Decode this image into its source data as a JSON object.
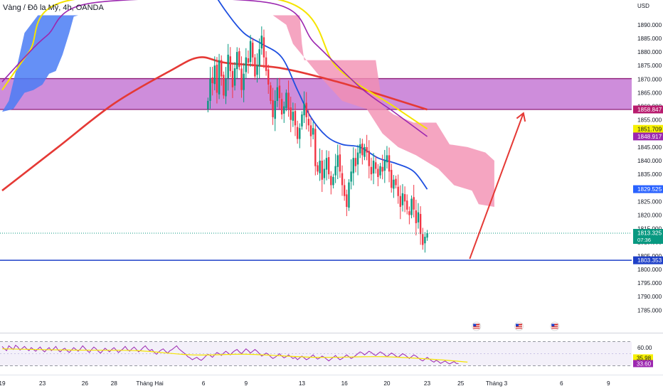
{
  "header": {
    "title": "Vàng / Đô la Mỹ, 4h, OANDA"
  },
  "currency": "USD",
  "price_axis": {
    "ticks": [
      "1890.000",
      "1885.000",
      "1880.000",
      "1875.000",
      "1870.000",
      "1865.000",
      "1860.000",
      "1855.000",
      "1850.000",
      "1845.000",
      "1840.000",
      "1835.000",
      "1830.000",
      "1825.000",
      "1820.000",
      "1815.000",
      "1810.000",
      "1805.000",
      "1800.000",
      "1795.000",
      "1790.000",
      "1785.000"
    ],
    "tick_values": [
      1890,
      1885,
      1880,
      1875,
      1870,
      1865,
      1860,
      1855,
      1850,
      1845,
      1840,
      1835,
      1830,
      1825,
      1820,
      1815,
      1810,
      1805,
      1800,
      1795,
      1790,
      1785
    ],
    "ymin": 1780.5,
    "ymax": 1893.5,
    "badges": [
      {
        "label": "1858.847",
        "value": 1858.847,
        "bg": "#b81b6e",
        "fg": "#ffffff",
        "kind": "line"
      },
      {
        "label": "1851.709",
        "value": 1851.709,
        "bg": "#f6f000",
        "fg": "#131722",
        "kind": "ma"
      },
      {
        "label": "1848.917",
        "value": 1848.917,
        "bg": "#9c27b0",
        "fg": "#ffffff",
        "kind": "ma"
      },
      {
        "label": "1829.525",
        "value": 1829.525,
        "bg": "#2962ff",
        "fg": "#ffffff",
        "kind": "ma"
      },
      {
        "label": "1813.325",
        "value": 1813.325,
        "bg": "#089981",
        "fg": "#ffffff",
        "kind": "price",
        "sub": "07:36"
      },
      {
        "label": "1803.353",
        "value": 1803.353,
        "bg": "#1e40c8",
        "fg": "#ffffff",
        "kind": "line"
      }
    ]
  },
  "time_axis": {
    "labels": [
      {
        "text": "19",
        "i": 0
      },
      {
        "text": "23",
        "i": 18
      },
      {
        "text": "26",
        "i": 37
      },
      {
        "text": "28",
        "i": 50
      },
      {
        "text": "Tháng Hai",
        "i": 66
      },
      {
        "text": "6",
        "i": 90
      },
      {
        "text": "9",
        "i": 109
      },
      {
        "text": "13",
        "i": 134
      },
      {
        "text": "16",
        "i": 153
      },
      {
        "text": "20",
        "i": 172
      },
      {
        "text": "23",
        "i": 190
      },
      {
        "text": "25",
        "i": 205
      },
      {
        "text": "Tháng 3",
        "i": 221
      },
      {
        "text": "6",
        "i": 250
      },
      {
        "text": "9",
        "i": 271
      }
    ]
  },
  "rsi": {
    "ticks": [
      "60.00"
    ],
    "badges": [
      {
        "label": "35.98",
        "bg": "#f6f000",
        "fg": "#131722",
        "value": 35.98
      },
      {
        "label": "33.60",
        "bg": "#9c27b0",
        "fg": "#ffffff",
        "value": 33.6
      }
    ],
    "upper": 70,
    "lower": 30,
    "values": [
      62,
      58,
      55,
      63,
      60,
      57,
      64,
      61,
      56,
      59,
      62,
      58,
      55,
      60,
      57,
      54,
      58,
      61,
      56,
      53,
      57,
      60,
      55,
      58,
      62,
      56,
      53,
      57,
      59,
      55,
      52,
      56,
      60,
      57,
      54,
      58,
      63,
      59,
      55,
      52,
      57,
      61,
      58,
      54,
      51,
      55,
      59,
      56,
      53,
      57,
      60,
      56,
      52,
      55,
      58,
      62,
      57,
      54,
      58,
      61,
      57,
      53,
      56,
      60,
      63,
      58,
      55,
      57,
      52,
      49,
      53,
      56,
      58,
      54,
      51,
      55,
      57,
      60,
      63,
      58,
      55,
      52,
      49,
      45,
      43,
      40,
      42,
      44,
      41,
      39,
      42,
      46,
      49,
      47,
      44,
      48,
      52,
      50,
      47,
      51,
      54,
      51,
      48,
      52,
      55,
      57,
      53,
      50,
      54,
      58,
      55,
      51,
      54,
      57,
      54,
      50,
      46,
      48,
      51,
      49,
      45,
      42,
      44,
      47,
      50,
      46,
      43,
      45,
      48,
      45,
      42,
      44,
      40,
      43,
      46,
      43,
      40,
      42,
      45,
      48,
      44,
      41,
      43,
      46,
      44,
      41,
      38,
      41,
      44,
      47,
      43,
      40,
      42,
      45,
      48,
      45,
      42,
      44,
      47,
      50,
      53,
      51,
      48,
      51,
      54,
      52,
      49,
      47,
      50,
      53,
      51,
      48,
      45,
      48,
      51,
      49,
      46,
      44,
      47,
      50,
      48,
      45,
      42,
      45,
      48,
      46,
      43,
      40,
      38,
      41,
      44,
      41,
      38,
      36,
      39,
      37,
      34,
      36,
      38,
      35,
      33,
      35,
      37,
      34,
      33.6
    ],
    "signal_anchors": [
      [
        0,
        58
      ],
      [
        30,
        56
      ],
      [
        60,
        55
      ],
      [
        85,
        48
      ],
      [
        110,
        49
      ],
      [
        140,
        44
      ],
      [
        170,
        45
      ],
      [
        195,
        40
      ],
      [
        208,
        36
      ]
    ]
  },
  "events": [
    {
      "i": 212,
      "icon": "us-flag-icon"
    },
    {
      "i": 231,
      "icon": "us-flag-icon"
    },
    {
      "i": 247,
      "icon": "us-flag-icon"
    }
  ],
  "chart_data": {
    "type": "candlestick",
    "title": "Vàng / Đô la Mỹ, 4h, OANDA",
    "timeframe": "4h",
    "last_price": 1813.325,
    "countdown": "07:36",
    "ylim": [
      1780.5,
      1893.5
    ],
    "x_start_index": 0,
    "candle_start_index": 92,
    "zone": {
      "from": 1858.847,
      "to": 1870.2,
      "color": "#c77dd6"
    },
    "support_line": 1803.353,
    "arrow": {
      "from": {
        "i": 209,
        "v": 1803.9
      },
      "to": {
        "i": 233,
        "v": 1857.5
      }
    },
    "closes": [
      1862.0,
      1870.0,
      1868.5,
      1875.0,
      1865.0,
      1877.0,
      1871.0,
      1864.0,
      1870.0,
      1879.0,
      1873.0,
      1867.0,
      1874.0,
      1880.0,
      1874.5,
      1866.0,
      1872.0,
      1878.0,
      1876.0,
      1884.0,
      1878.0,
      1871.0,
      1875.0,
      1881.0,
      1886.0,
      1878.0,
      1873.0,
      1868.0,
      1862.0,
      1856.0,
      1862.0,
      1867.0,
      1863.0,
      1857.0,
      1860.0,
      1865.0,
      1859.0,
      1855.0,
      1858.0,
      1853.0,
      1848.0,
      1852.0,
      1857.0,
      1861.0,
      1856.0,
      1853.0,
      1849.0,
      1852.0,
      1838.0,
      1836.0,
      1840.0,
      1833.0,
      1837.0,
      1841.0,
      1835.0,
      1831.0,
      1834.0,
      1838.0,
      1842.0,
      1836.0,
      1831.0,
      1827.0,
      1823.0,
      1832.0,
      1836.0,
      1841.0,
      1838.0,
      1843.0,
      1846.0,
      1842.0,
      1845.0,
      1843.0,
      1838.0,
      1835.0,
      1840.0,
      1837.0,
      1834.0,
      1838.0,
      1836.0,
      1840.0,
      1842.0,
      1836.0,
      1830.0,
      1833.0,
      1831.0,
      1827.0,
      1823.0,
      1828.0,
      1825.0,
      1822.0,
      1820.0,
      1826.0,
      1822.0,
      1817.0,
      1821.0,
      1813.0,
      1809.0,
      1812.0,
      1813.325
    ],
    "ma_red": [
      [
        0,
        1829
      ],
      [
        25,
        1845
      ],
      [
        50,
        1861
      ],
      [
        75,
        1873
      ],
      [
        88,
        1878
      ],
      [
        100,
        1876
      ],
      [
        125,
        1874
      ],
      [
        150,
        1869
      ],
      [
        170,
        1864
      ],
      [
        190,
        1858.8
      ]
    ],
    "ma_yellow": [
      [
        0,
        1866
      ],
      [
        12,
        1880
      ],
      [
        30,
        1899
      ],
      [
        125,
        1899
      ],
      [
        150,
        1874
      ],
      [
        175,
        1860
      ],
      [
        190,
        1851.7
      ]
    ],
    "ma_purple": [
      [
        0,
        1869
      ],
      [
        10,
        1878
      ],
      [
        20,
        1886
      ],
      [
        40,
        1898
      ],
      [
        120,
        1898
      ],
      [
        140,
        1883
      ],
      [
        160,
        1867
      ],
      [
        175,
        1858
      ],
      [
        190,
        1848.9
      ]
    ],
    "ma_blue": [
      [
        92,
        1905
      ],
      [
        100,
        1895
      ],
      [
        108,
        1887
      ],
      [
        116,
        1883
      ],
      [
        125,
        1878
      ],
      [
        132,
        1866
      ],
      [
        138,
        1856
      ],
      [
        145,
        1849
      ],
      [
        152,
        1846
      ],
      [
        160,
        1845
      ],
      [
        168,
        1841
      ],
      [
        176,
        1839
      ],
      [
        184,
        1836
      ],
      [
        190,
        1829.5
      ]
    ],
    "cloud_left": [
      [
        0,
        1858
      ],
      [
        3,
        1862
      ],
      [
        7,
        1876
      ],
      [
        10,
        1887
      ],
      [
        16,
        1893.5
      ],
      [
        34,
        1893.5
      ],
      [
        32,
        1893
      ],
      [
        30,
        1887
      ],
      [
        27,
        1879
      ],
      [
        24,
        1873
      ],
      [
        21,
        1872
      ],
      [
        18,
        1868
      ],
      [
        14,
        1866
      ],
      [
        10,
        1865
      ],
      [
        5,
        1859
      ],
      [
        0,
        1858
      ]
    ],
    "cloud_right_top": [
      [
        121,
        1893.5
      ],
      [
        133,
        1893.5
      ],
      [
        134,
        1883
      ],
      [
        135,
        1877
      ],
      [
        167,
        1877
      ],
      [
        170,
        1860
      ],
      [
        175,
        1857
      ],
      [
        184,
        1854
      ],
      [
        194,
        1854
      ],
      [
        200,
        1846
      ],
      [
        208,
        1845
      ],
      [
        212,
        1844
      ],
      [
        216,
        1843
      ],
      [
        220,
        1840
      ]
    ],
    "cloud_right_bottom": [
      [
        121,
        1893.5
      ],
      [
        127,
        1890
      ],
      [
        130,
        1883
      ],
      [
        141,
        1872
      ],
      [
        152,
        1862
      ],
      [
        163,
        1859
      ],
      [
        170,
        1850
      ],
      [
        177,
        1845
      ],
      [
        185,
        1842
      ],
      [
        195,
        1837
      ],
      [
        202,
        1831
      ],
      [
        210,
        1829
      ],
      [
        213,
        1824
      ],
      [
        220,
        1823
      ]
    ]
  }
}
